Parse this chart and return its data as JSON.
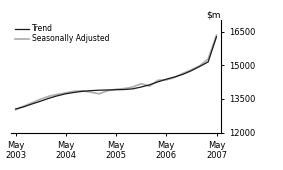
{
  "ylim": [
    12000,
    17000
  ],
  "yticks": [
    12000,
    13500,
    15000,
    16500
  ],
  "x_labels": [
    "May\n2003",
    "May\n2004",
    "May\n2005",
    "May\n2006",
    "May\n2007"
  ],
  "x_positions": [
    0,
    12,
    24,
    36,
    48
  ],
  "trend_x": [
    0,
    2,
    4,
    6,
    8,
    10,
    12,
    14,
    16,
    18,
    20,
    22,
    24,
    26,
    28,
    30,
    32,
    34,
    36,
    38,
    40,
    42,
    44,
    46,
    48
  ],
  "trend_y": [
    13050,
    13150,
    13280,
    13400,
    13530,
    13640,
    13730,
    13790,
    13840,
    13870,
    13890,
    13900,
    13910,
    13920,
    13950,
    14030,
    14130,
    14260,
    14380,
    14480,
    14600,
    14760,
    14950,
    15150,
    16280
  ],
  "seasonal_x": [
    0,
    2,
    4,
    6,
    8,
    10,
    12,
    14,
    16,
    18,
    20,
    22,
    24,
    26,
    28,
    30,
    32,
    34,
    36,
    38,
    40,
    42,
    44,
    46,
    48
  ],
  "seasonal_y": [
    13020,
    13180,
    13330,
    13490,
    13620,
    13700,
    13770,
    13840,
    13860,
    13800,
    13730,
    13870,
    13930,
    13960,
    14030,
    14180,
    14070,
    14330,
    14350,
    14460,
    14640,
    14800,
    14980,
    15280,
    16350
  ],
  "trend_color": "#1a1a1a",
  "seasonal_color": "#b0b0b0",
  "trend_linewidth": 0.9,
  "seasonal_linewidth": 1.3,
  "background_color": "#ffffff",
  "legend_entries": [
    "Trend",
    "Seasonally Adjusted"
  ],
  "legend_colors": [
    "#1a1a1a",
    "#b0b0b0"
  ],
  "ylabel_fontsize": 6.5,
  "tick_fontsize": 6
}
